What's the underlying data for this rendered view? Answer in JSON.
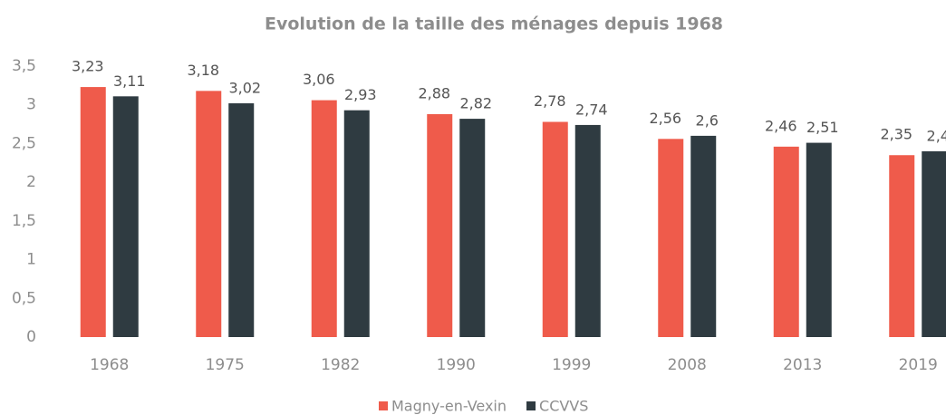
{
  "chart_data": {
    "type": "bar",
    "title": "Evolution de la taille des ménages depuis 1968",
    "categories": [
      "1968",
      "1975",
      "1982",
      "1990",
      "1999",
      "2008",
      "2013",
      "2019"
    ],
    "series": [
      {
        "name": "Magny-en-Vexin",
        "color": "#ef5b4b",
        "values": [
          3.23,
          3.18,
          3.06,
          2.88,
          2.78,
          2.56,
          2.46,
          2.35
        ],
        "value_labels": [
          "3,23",
          "3,18",
          "3,06",
          "2,88",
          "2,78",
          "2,56",
          "2,46",
          "2,35"
        ]
      },
      {
        "name": "CCVVS",
        "color": "#2f3b41",
        "values": [
          3.11,
          3.02,
          2.93,
          2.82,
          2.74,
          2.6,
          2.51,
          2.4
        ],
        "value_labels": [
          "3,11",
          "3,02",
          "2,93",
          "2,82",
          "2,74",
          "2,6",
          "2,51",
          "2,4"
        ]
      }
    ],
    "ylim": [
      0,
      3.5
    ],
    "yticks": [
      0,
      {
        "value": 0.5,
        "label": "0,5"
      },
      1,
      {
        "value": 1.5,
        "label": "1,5"
      },
      2,
      {
        "value": 2.5,
        "label": "2,5"
      },
      3,
      {
        "value": 3.5,
        "label": "3,5"
      }
    ],
    "grid": false,
    "legend": "bottom"
  }
}
